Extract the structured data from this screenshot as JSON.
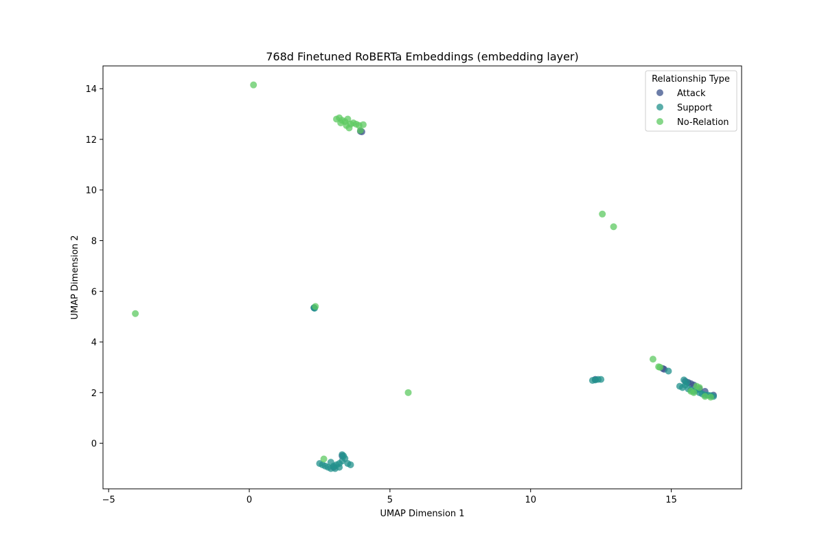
{
  "chart_data": {
    "type": "scatter",
    "title": "768d Finetuned RoBERTa Embeddings (embedding layer)",
    "xlabel": "UMAP Dimension 1",
    "ylabel": "UMAP Dimension 2",
    "xlim": [
      -5.2,
      17.5
    ],
    "ylim": [
      -1.8,
      14.9
    ],
    "xticks": [
      -5,
      0,
      5,
      10,
      15
    ],
    "yticks": [
      0,
      2,
      4,
      6,
      8,
      10,
      12,
      14
    ],
    "xtick_labels": [
      "−5",
      "0",
      "5",
      "10",
      "15"
    ],
    "ytick_labels": [
      "0",
      "2",
      "4",
      "6",
      "8",
      "10",
      "12",
      "14"
    ],
    "grid": false,
    "legend": {
      "title": "Relationship Type",
      "placement": "top-right",
      "entries": [
        {
          "label": "Attack",
          "color": "#3b528b"
        },
        {
          "label": "Support",
          "color": "#21918c"
        },
        {
          "label": "No-Relation",
          "color": "#5ec962"
        }
      ]
    },
    "series": [
      {
        "name": "Attack",
        "color": "#3b528b",
        "points": [
          [
            4.0,
            12.3
          ],
          [
            3.95,
            12.32
          ],
          [
            2.3,
            5.35
          ],
          [
            14.7,
            2.95
          ],
          [
            14.75,
            2.92
          ],
          [
            15.5,
            2.45
          ],
          [
            15.6,
            2.4
          ],
          [
            15.7,
            2.35
          ],
          [
            15.8,
            2.3
          ],
          [
            16.0,
            2.15
          ],
          [
            16.2,
            2.05
          ],
          [
            16.5,
            1.9
          ],
          [
            12.3,
            2.52
          ],
          [
            3.3,
            -0.5
          ],
          [
            3.0,
            -0.95
          ]
        ]
      },
      {
        "name": "Support",
        "color": "#21918c",
        "points": [
          [
            2.3,
            5.35
          ],
          [
            2.32,
            5.33
          ],
          [
            12.2,
            2.48
          ],
          [
            12.3,
            2.5
          ],
          [
            12.4,
            2.52
          ],
          [
            12.5,
            2.52
          ],
          [
            15.3,
            2.25
          ],
          [
            15.4,
            2.2
          ],
          [
            15.5,
            2.3
          ],
          [
            15.6,
            2.15
          ],
          [
            15.7,
            2.1
          ],
          [
            15.8,
            2.05
          ],
          [
            15.9,
            2.1
          ],
          [
            16.0,
            2.0
          ],
          [
            16.1,
            1.95
          ],
          [
            16.2,
            1.9
          ],
          [
            16.3,
            1.9
          ],
          [
            16.4,
            1.88
          ],
          [
            16.5,
            1.85
          ],
          [
            15.45,
            2.5
          ],
          [
            15.55,
            2.4
          ],
          [
            14.9,
            2.85
          ],
          [
            2.5,
            -0.8
          ],
          [
            2.6,
            -0.85
          ],
          [
            2.7,
            -0.9
          ],
          [
            2.8,
            -0.95
          ],
          [
            2.9,
            -1.0
          ],
          [
            3.0,
            -0.9
          ],
          [
            3.1,
            -0.85
          ],
          [
            3.2,
            -0.8
          ],
          [
            3.3,
            -0.7
          ],
          [
            3.35,
            -0.5
          ],
          [
            3.4,
            -0.6
          ],
          [
            3.5,
            -0.8
          ],
          [
            3.6,
            -0.85
          ],
          [
            2.9,
            -0.75
          ],
          [
            3.05,
            -1.0
          ],
          [
            3.2,
            -0.95
          ],
          [
            3.3,
            -0.45
          ]
        ]
      },
      {
        "name": "No-Relation",
        "color": "#5ec962",
        "points": [
          [
            0.15,
            14.15
          ],
          [
            -4.05,
            5.12
          ],
          [
            2.35,
            5.4
          ],
          [
            5.65,
            2.0
          ],
          [
            3.1,
            12.8
          ],
          [
            3.2,
            12.85
          ],
          [
            3.3,
            12.75
          ],
          [
            3.4,
            12.7
          ],
          [
            3.5,
            12.8
          ],
          [
            3.6,
            12.6
          ],
          [
            3.7,
            12.65
          ],
          [
            3.8,
            12.6
          ],
          [
            3.9,
            12.55
          ],
          [
            4.05,
            12.58
          ],
          [
            3.55,
            12.45
          ],
          [
            3.25,
            12.65
          ],
          [
            3.45,
            12.55
          ],
          [
            3.95,
            12.35
          ],
          [
            12.55,
            9.05
          ],
          [
            12.95,
            8.55
          ],
          [
            14.35,
            3.32
          ],
          [
            14.55,
            3.02
          ],
          [
            14.6,
            3.0
          ],
          [
            15.9,
            2.25
          ],
          [
            16.0,
            2.2
          ],
          [
            15.7,
            2.05
          ],
          [
            16.2,
            1.85
          ],
          [
            16.4,
            1.82
          ],
          [
            15.8,
            2.0
          ],
          [
            2.65,
            -0.62
          ]
        ]
      }
    ]
  }
}
